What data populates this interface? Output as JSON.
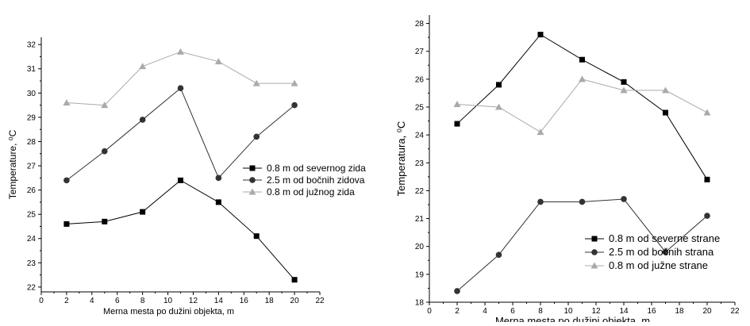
{
  "chart_data": [
    {
      "type": "line",
      "xlabel": "Merna mesta po dužini objekta, m",
      "ylabel": "Temperature, ⁰C",
      "xlim": [
        0,
        22
      ],
      "ylim": [
        21.8,
        32.3
      ],
      "xticks": [
        0,
        2,
        4,
        6,
        8,
        10,
        12,
        14,
        16,
        18,
        20,
        22
      ],
      "yticks": [
        22,
        23,
        24,
        25,
        26,
        27,
        28,
        29,
        30,
        31,
        32
      ],
      "grid": false,
      "legend_position": "center-right",
      "x": [
        2,
        5,
        8,
        11,
        14,
        17,
        20
      ],
      "series": [
        {
          "name": "0.8 m od severnog zida",
          "marker": "square",
          "color": "#000000",
          "values": [
            24.6,
            24.7,
            25.1,
            26.4,
            25.5,
            24.1,
            22.3
          ]
        },
        {
          "name": "2.5 m od bočnih zidova",
          "marker": "circle",
          "color": "#333333",
          "values": [
            26.4,
            27.6,
            28.9,
            30.2,
            26.5,
            28.2,
            29.5
          ]
        },
        {
          "name": "0.8 m od južnog zida",
          "marker": "triangle",
          "color": "#aaaaaa",
          "values": [
            29.6,
            29.5,
            31.1,
            31.7,
            31.3,
            30.4,
            30.4
          ]
        }
      ]
    },
    {
      "type": "line",
      "xlabel": "Merna mesta po dužini objekta, m",
      "ylabel": "Temperatura, ⁰C",
      "xlim": [
        0,
        22
      ],
      "ylim": [
        18,
        28.3
      ],
      "xticks": [
        0,
        2,
        4,
        6,
        8,
        10,
        12,
        14,
        16,
        18,
        20,
        22
      ],
      "yticks": [
        18,
        19,
        20,
        21,
        22,
        23,
        24,
        25,
        26,
        27,
        28
      ],
      "grid": false,
      "legend_position": "bottom-right",
      "x": [
        2,
        5,
        8,
        11,
        14,
        17,
        20
      ],
      "series": [
        {
          "name": "0.8 m od severne strane",
          "marker": "square",
          "color": "#000000",
          "values": [
            24.4,
            25.8,
            27.6,
            26.7,
            25.9,
            24.8,
            22.4
          ]
        },
        {
          "name": "2.5 m od bočnih strana",
          "marker": "circle",
          "color": "#333333",
          "values": [
            18.4,
            19.7,
            21.6,
            21.6,
            21.7,
            19.8,
            21.1
          ]
        },
        {
          "name": "0.8 m od južne strane",
          "marker": "triangle",
          "color": "#aaaaaa",
          "values": [
            25.1,
            25.0,
            24.1,
            26.0,
            25.6,
            25.6,
            24.8
          ]
        }
      ]
    }
  ]
}
